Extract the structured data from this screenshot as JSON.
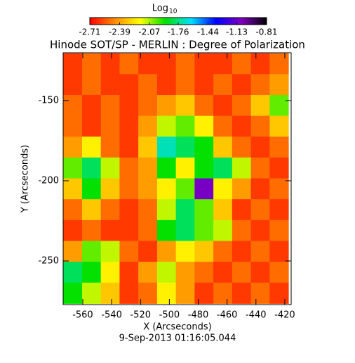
{
  "chart_data": {
    "type": "heatmap",
    "title": "Hinode SOT/SP - MERLIN : Degree of Polarization",
    "xlabel": "X (Arcseconds)",
    "ylabel": "Y (Arcseconds)",
    "footer": "9-Sep-2013 01:16:05.044",
    "colorbar_label": "Log",
    "colorbar_label_subscript": "10",
    "colorbar_ticks": [
      -2.71,
      -2.39,
      -2.07,
      -1.76,
      -1.44,
      -1.13,
      -0.81
    ],
    "colorscale": [
      "#ff0000",
      "#ff8c00",
      "#ffff00",
      "#00e000",
      "#00e0ff",
      "#0000ff",
      "#8000c0",
      "#000000"
    ],
    "xlim": [
      -573.6,
      -415.6
    ],
    "ylim": [
      -277.2,
      -120.2
    ],
    "xticks": [
      -560,
      -540,
      -520,
      -500,
      -480,
      -460,
      -440,
      -420
    ],
    "yticks": [
      -250,
      -200,
      -150
    ],
    "x": [
      -567,
      -554,
      -541,
      -528,
      -515,
      -502,
      -489,
      -476,
      -463,
      -450,
      -437,
      -424
    ],
    "y": [
      -127,
      -140,
      -153,
      -166,
      -179,
      -192,
      -205,
      -218,
      -231,
      -244,
      -257,
      -270
    ],
    "z": [
      [
        -2.6,
        -2.5,
        -2.6,
        -2.5,
        -2.6,
        -2.6,
        -2.5,
        -2.6,
        -2.6,
        -2.5,
        -2.6,
        -2.5
      ],
      [
        -2.6,
        -2.5,
        -2.6,
        -2.6,
        -2.5,
        -2.6,
        -2.5,
        -2.6,
        -2.5,
        -2.6,
        -2.5,
        -2.4
      ],
      [
        -2.5,
        -2.6,
        -2.5,
        -2.6,
        -2.5,
        -2.4,
        -2.3,
        -2.5,
        -2.6,
        -2.5,
        -2.3,
        -2.0
      ],
      [
        -2.5,
        -2.6,
        -2.5,
        -2.6,
        -2.4,
        -2.1,
        -2.0,
        -2.2,
        -2.5,
        -2.6,
        -2.5,
        -2.3
      ],
      [
        -2.4,
        -2.2,
        -2.5,
        -2.6,
        -2.3,
        -1.7,
        -1.8,
        -1.9,
        -2.3,
        -2.5,
        -2.6,
        -2.5
      ],
      [
        -2.0,
        -1.8,
        -2.1,
        -2.5,
        -2.4,
        -1.9,
        -2.2,
        -1.9,
        -1.8,
        -2.1,
        -2.5,
        -2.6
      ],
      [
        -2.3,
        -1.9,
        -2.3,
        -2.5,
        -2.4,
        -2.2,
        -2.0,
        -1.1,
        -2.2,
        -2.4,
        -2.6,
        -2.5
      ],
      [
        -2.5,
        -2.3,
        -2.5,
        -2.6,
        -2.5,
        -2.1,
        -1.8,
        -2.0,
        -2.3,
        -2.6,
        -2.5,
        -2.6
      ],
      [
        -2.6,
        -2.5,
        -2.6,
        -2.6,
        -2.5,
        -1.9,
        -1.8,
        -2.0,
        -2.1,
        -2.5,
        -2.6,
        -2.5
      ],
      [
        -2.4,
        -2.0,
        -2.1,
        -2.5,
        -2.6,
        -2.4,
        -2.2,
        -2.3,
        -2.5,
        -2.6,
        -2.5,
        -2.6
      ],
      [
        -1.8,
        -1.9,
        -2.2,
        -2.6,
        -2.4,
        -2.1,
        -2.4,
        -2.5,
        -2.6,
        -2.5,
        -2.6,
        -2.5
      ],
      [
        -1.9,
        -2.1,
        -2.3,
        -2.6,
        -2.5,
        -2.2,
        -2.4,
        -2.6,
        -2.5,
        -2.6,
        -2.5,
        -2.6
      ]
    ]
  }
}
